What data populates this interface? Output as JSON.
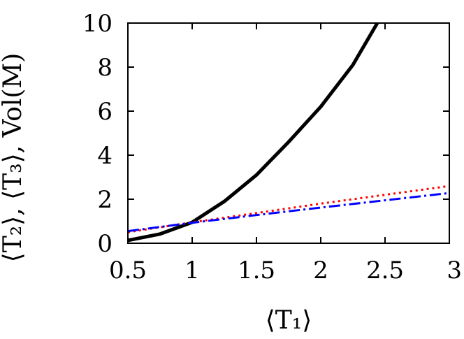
{
  "chart_data": {
    "type": "line",
    "xlabel": "⟨T₁⟩",
    "ylabel": "⟨T₂⟩, ⟨T₃⟩, Vol(M)",
    "xlim": [
      0.5,
      3
    ],
    "ylim": [
      0,
      10
    ],
    "grid": false,
    "legend": "none",
    "x_ticks": [
      "0.5",
      "1",
      "1.5",
      "2",
      "2.5",
      "3"
    ],
    "y_ticks": [
      "0",
      "2",
      "4",
      "6",
      "8",
      "10"
    ],
    "series": [
      {
        "color": "#000000",
        "style": "solid",
        "x": [
          0.5,
          0.75,
          1.0,
          1.25,
          1.5,
          1.75,
          2.0,
          2.25,
          2.44
        ],
        "y": [
          0.13,
          0.42,
          0.95,
          1.9,
          3.1,
          4.6,
          6.2,
          8.1,
          10.0
        ]
      },
      {
        "color": "#ff0000",
        "style": "dotted",
        "x": [
          0.5,
          1.0,
          1.5,
          2.0,
          2.5,
          3.0
        ],
        "y": [
          0.5,
          0.95,
          1.37,
          1.8,
          2.2,
          2.6
        ]
      },
      {
        "color": "#0000ff",
        "style": "dash-dot",
        "x": [
          0.5,
          1.0,
          1.5,
          2.0,
          2.5,
          3.0
        ],
        "y": [
          0.55,
          0.93,
          1.28,
          1.62,
          1.95,
          2.28
        ]
      }
    ]
  }
}
